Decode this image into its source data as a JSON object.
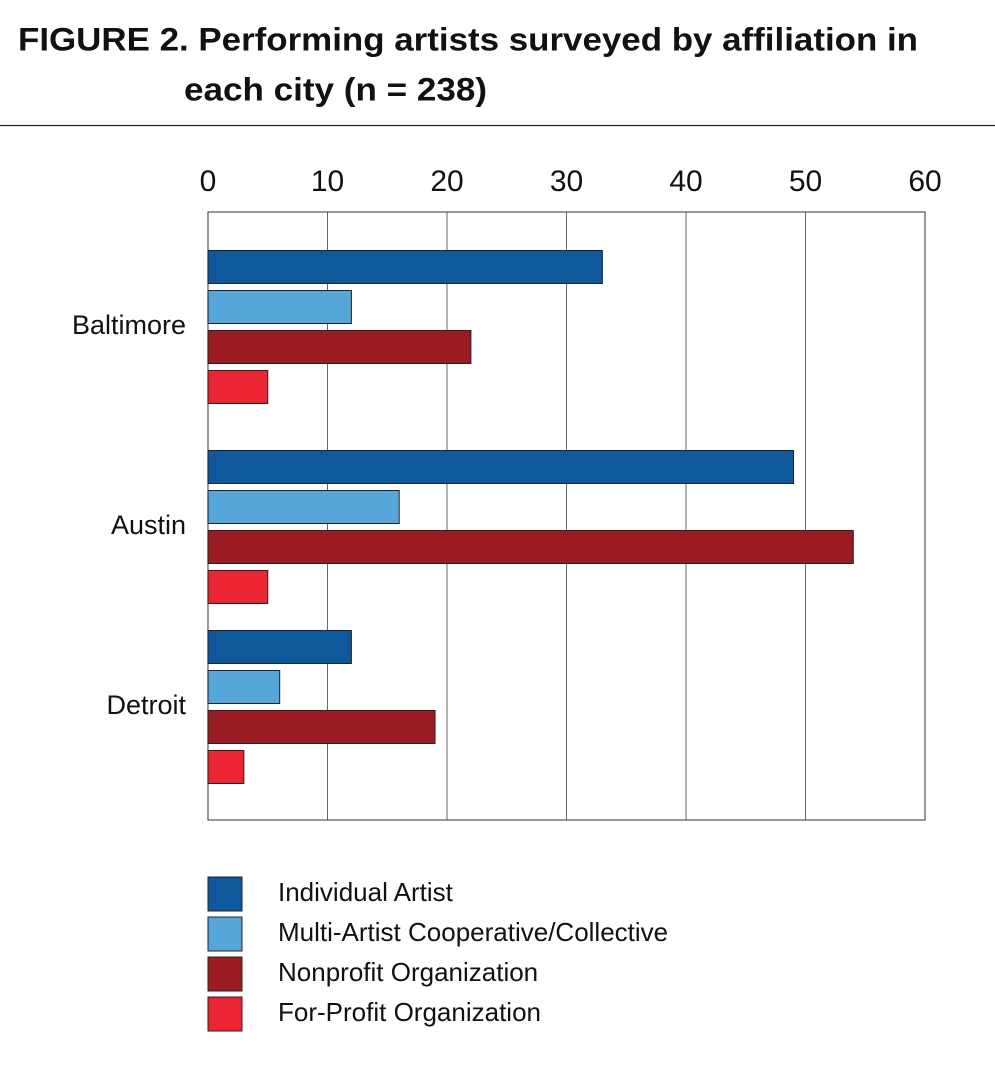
{
  "chart_data": {
    "type": "bar",
    "orientation": "horizontal",
    "title": [
      "FIGURE 2. Performing artists surveyed by affiliation in",
      "each city (n = 238)"
    ],
    "categories": [
      "Baltimore",
      "Austin",
      "Detroit"
    ],
    "series": [
      {
        "name": "Individual Artist",
        "color": "#0f589b",
        "values": [
          33,
          49,
          12
        ]
      },
      {
        "name": "Multi-Artist Cooperative/Collective",
        "color": "#56a6da",
        "values": [
          12,
          16,
          6
        ]
      },
      {
        "name": "Nonprofit Organization",
        "color": "#9a1b21",
        "values": [
          22,
          54,
          19
        ]
      },
      {
        "name": "For-Profit Organization",
        "color": "#ec2535",
        "values": [
          5,
          5,
          3
        ]
      }
    ],
    "xlim": [
      0,
      60
    ],
    "xticks": [
      0,
      10,
      20,
      30,
      40,
      50,
      60
    ],
    "grid": true
  }
}
